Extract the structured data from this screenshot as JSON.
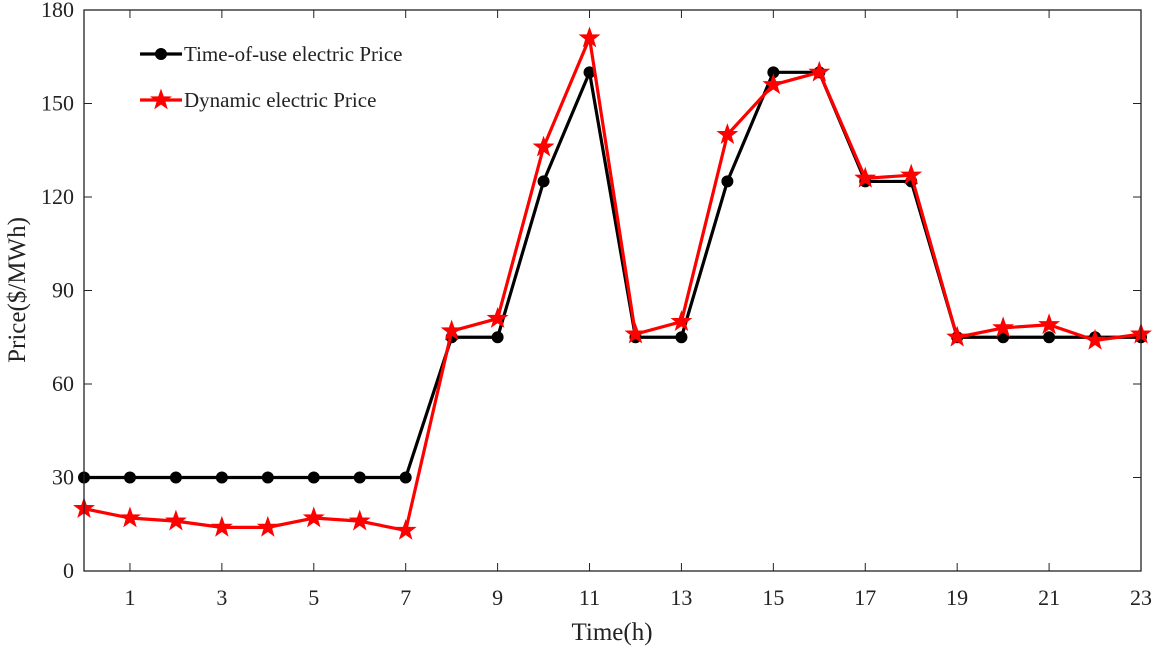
{
  "chart_data": {
    "type": "line",
    "title": "",
    "xlabel": "Time(h)",
    "ylabel": "Price($/MWh)",
    "xlim": [
      0,
      23
    ],
    "ylim": [
      0,
      180
    ],
    "xticks": [
      1,
      3,
      5,
      7,
      9,
      11,
      13,
      15,
      17,
      19,
      21,
      23
    ],
    "yticks": [
      0,
      30,
      60,
      90,
      120,
      150,
      180
    ],
    "grid": false,
    "legend_position": "top-left",
    "x": [
      0,
      1,
      2,
      3,
      4,
      5,
      6,
      7,
      8,
      9,
      10,
      11,
      12,
      13,
      14,
      15,
      16,
      17,
      18,
      19,
      20,
      21,
      22,
      23
    ],
    "series": [
      {
        "name": "Time-of-use electric Price",
        "color": "#000000",
        "marker": "circle",
        "values": [
          30,
          30,
          30,
          30,
          30,
          30,
          30,
          30,
          75,
          75,
          125,
          160,
          75,
          75,
          125,
          160,
          160,
          125,
          125,
          75,
          75,
          75,
          75,
          75
        ]
      },
      {
        "name": "Dynamic electric Price",
        "color": "#ff0000",
        "marker": "star",
        "values": [
          20,
          17,
          16,
          14,
          14,
          17,
          16,
          13,
          77,
          81,
          136,
          171,
          76,
          80,
          140,
          156,
          160,
          126,
          127,
          75,
          78,
          79,
          74,
          76
        ]
      }
    ]
  }
}
